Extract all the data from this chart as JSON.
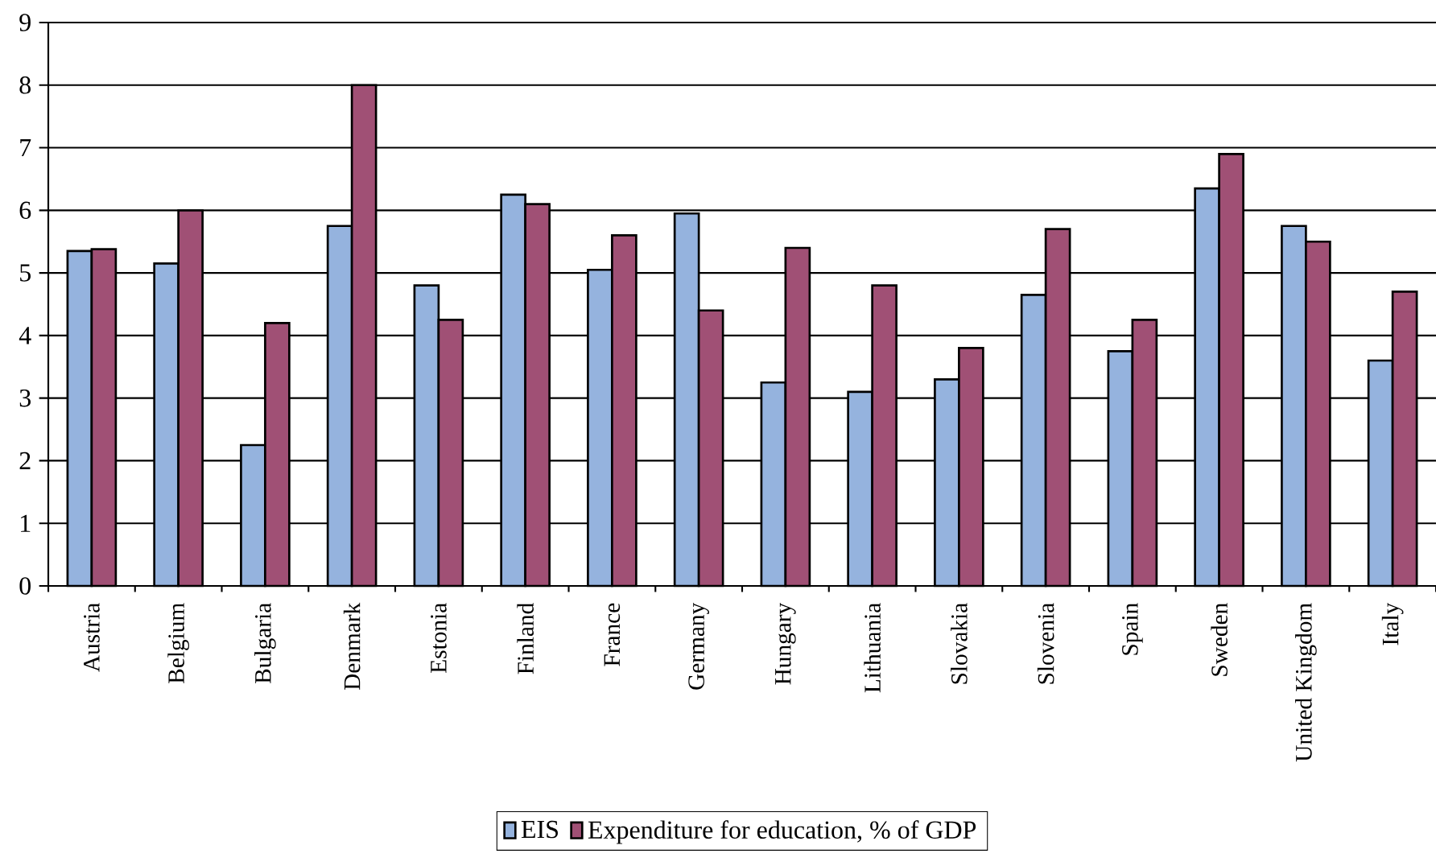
{
  "chart_data": {
    "type": "bar",
    "categories": [
      "Austria",
      "Belgium",
      "Bulgaria",
      "Denmark",
      "Estonia",
      "Finland",
      "France",
      "Germany",
      "Hungary",
      "Lithuania",
      "Slovakia",
      "Slovenia",
      "Spain",
      "Sweden",
      "United Kingdom",
      "Italy"
    ],
    "series": [
      {
        "name": "EIS",
        "color": "#95b3de",
        "values": [
          5.35,
          5.15,
          2.25,
          5.75,
          4.8,
          6.25,
          5.05,
          5.95,
          3.25,
          3.1,
          3.3,
          4.65,
          3.75,
          6.35,
          5.75,
          3.6
        ]
      },
      {
        "name": "Expenditure for education, % of GDP",
        "color": "#a05075",
        "values": [
          5.38,
          6.0,
          4.2,
          8.0,
          4.25,
          6.1,
          5.6,
          4.4,
          5.4,
          4.8,
          3.8,
          5.7,
          4.25,
          6.9,
          5.5,
          4.7
        ]
      }
    ],
    "ylim": [
      0,
      9
    ],
    "yticks": [
      0,
      1,
      2,
      3,
      4,
      5,
      6,
      7,
      8,
      9
    ],
    "grid": "y",
    "legend": "bottom"
  }
}
